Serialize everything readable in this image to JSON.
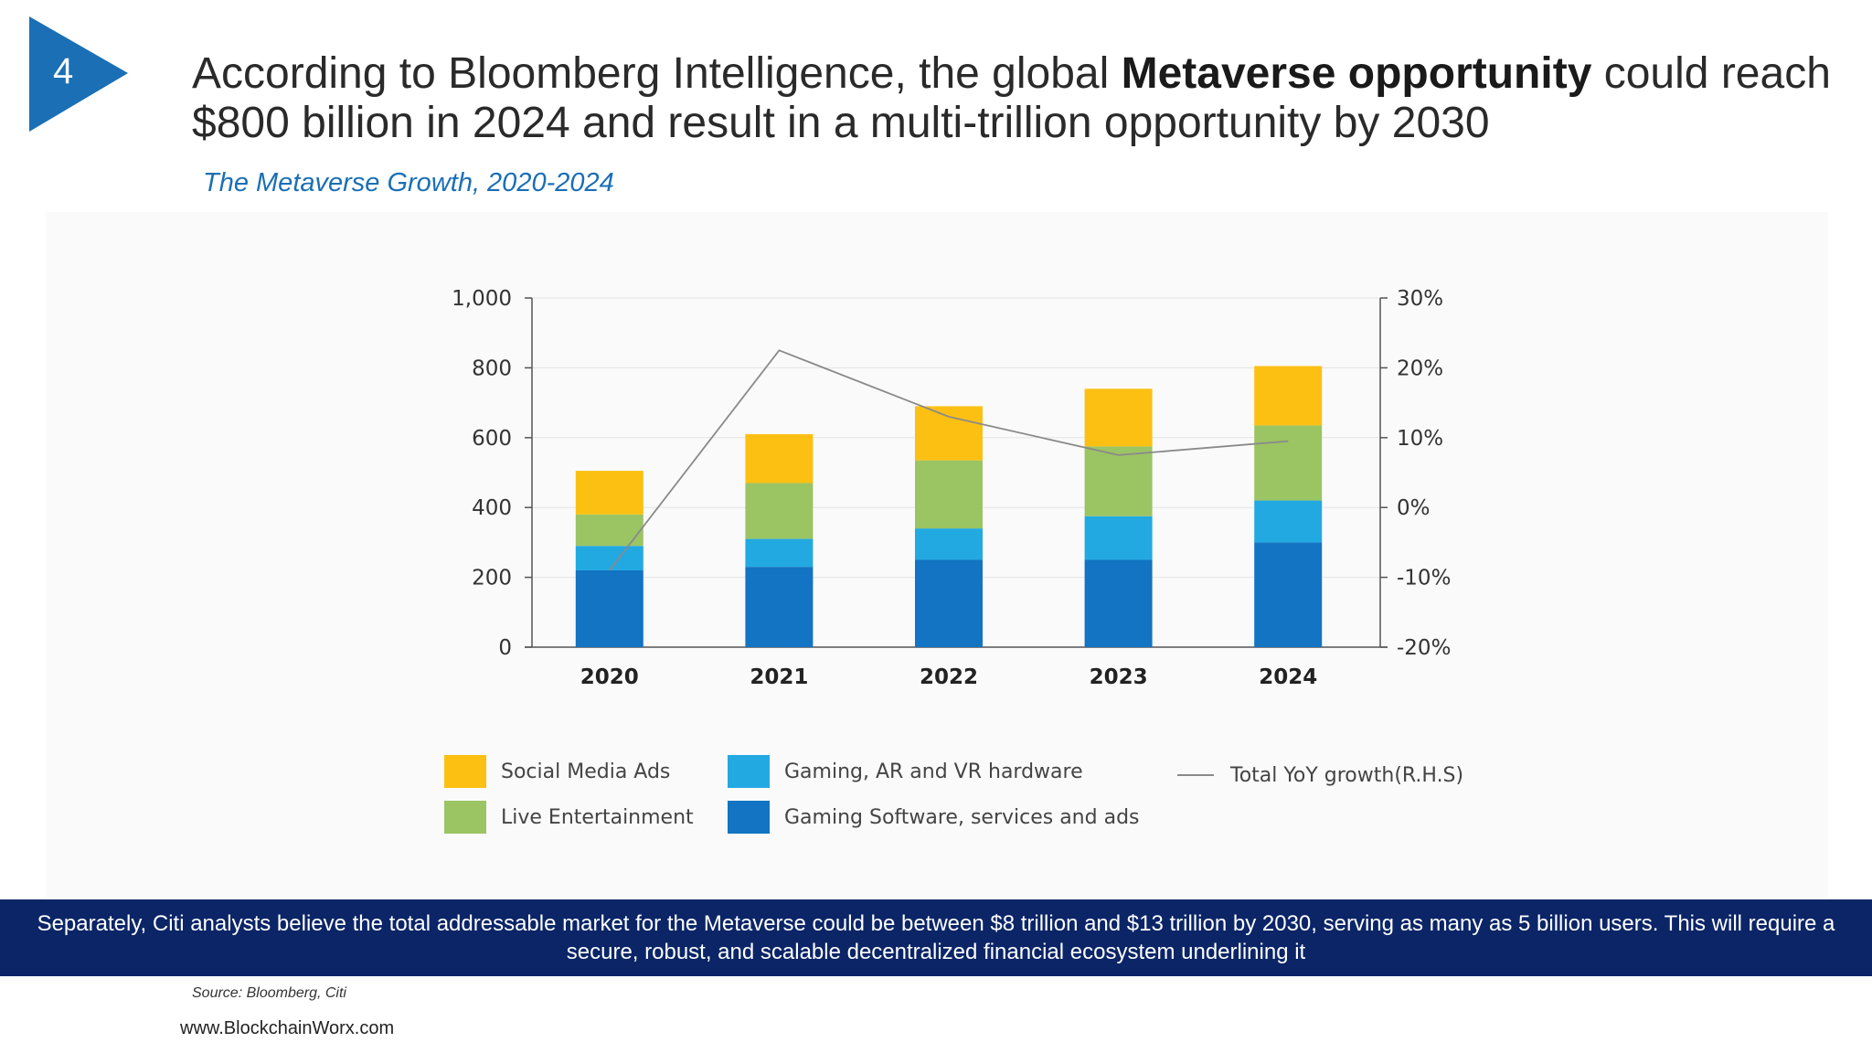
{
  "slide": {
    "number": "4",
    "headline_pre": "According to Bloomberg Intelligence, the global ",
    "headline_bold": "Metaverse opportunity",
    "headline_post": " could reach $800 billion in 2024 and result in a multi-trillion opportunity by 2030",
    "subtitle": "The Metaverse Growth, 2020-2024",
    "banner_text": "Separately, Citi analysts believe the total addressable market for the Metaverse could be between $8 trillion and $13 trillion by 2030, serving as many as 5 billion users. This will require a secure, robust, and scalable decentralized financial ecosystem underlining it",
    "source": "Source: Bloomberg, Citi",
    "website": "www.BlockchainWorx.com"
  },
  "colors": {
    "accent_blue": "#1a6fb5",
    "banner_navy": "#0b2567"
  },
  "chart_data": {
    "type": "bar",
    "stacked": true,
    "categories": [
      "2020",
      "2021",
      "2022",
      "2023",
      "2024"
    ],
    "ylim": [
      0,
      1000
    ],
    "yticks": [
      "1,000",
      "800",
      "600",
      "400",
      "200",
      "0"
    ],
    "y2lim": [
      -20,
      30
    ],
    "y2ticks": [
      "30%",
      "20%",
      "10%",
      "0%",
      "-10%",
      "-20%"
    ],
    "series": [
      {
        "name": "Gaming Software, services and ads",
        "color": "#1274c2",
        "values": [
          220,
          230,
          250,
          250,
          300
        ]
      },
      {
        "name": "Gaming, AR and VR hardware",
        "color": "#22a9e1",
        "values": [
          70,
          80,
          90,
          125,
          120
        ]
      },
      {
        "name": "Live Entertainment",
        "color": "#9bc463",
        "values": [
          90,
          160,
          195,
          200,
          215
        ]
      },
      {
        "name": "Social Media Ads",
        "color": "#fcc013",
        "values": [
          125,
          140,
          155,
          165,
          170
        ]
      }
    ],
    "line_series": {
      "name": "Total YoY growth(R.H.S)",
      "color": "#8a8a8a",
      "axis": "right",
      "values": [
        -9,
        22.5,
        13,
        7.5,
        9.5
      ]
    },
    "legend": {
      "position": "bottom",
      "order": [
        "Social Media Ads",
        "Gaming, AR and VR hardware",
        "Total YoY growth(R.H.S)",
        "Live Entertainment",
        "Gaming Software, services and ads"
      ]
    },
    "grid": true
  }
}
